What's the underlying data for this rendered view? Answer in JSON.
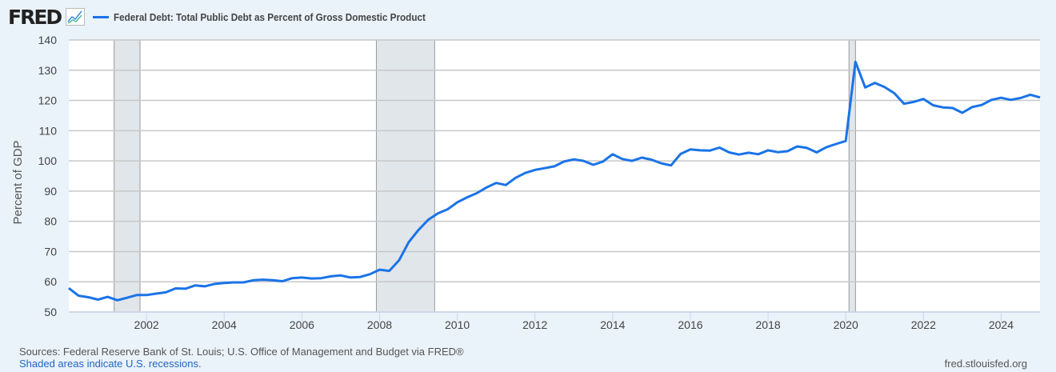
{
  "header": {
    "logo": "FRED",
    "legend_label": "Federal Debt: Total Public Debt as Percent of Gross Domestic Product"
  },
  "footer": {
    "sources": "Sources: Federal Reserve Bank of St. Louis; U.S. Office of Management and Budget via FRED®",
    "recessions_note": "Shaded areas indicate U.S. recessions.",
    "site": "fred.stlouisfed.org"
  },
  "chart_data": {
    "type": "line",
    "title": "",
    "ylabel": "Percent of GDP",
    "xlabel": "",
    "ylim": [
      50,
      140
    ],
    "xlim": [
      "2000-01",
      "2025-01"
    ],
    "yticks": [
      "50",
      "60",
      "70",
      "80",
      "90",
      "100",
      "110",
      "120",
      "130",
      "140"
    ],
    "xticks": [
      "2002",
      "2004",
      "2006",
      "2008",
      "2010",
      "2012",
      "2014",
      "2016",
      "2018",
      "2020",
      "2022",
      "2024"
    ],
    "grid": true,
    "colors": {
      "line": "#1a73e8",
      "recession": "#e1e6ea"
    },
    "recessions": [
      [
        "2001-03",
        "2001-11"
      ],
      [
        "2007-12",
        "2009-06"
      ],
      [
        "2020-02",
        "2020-04"
      ]
    ],
    "frequency": "quarterly",
    "start": "2000-01",
    "series": [
      {
        "name": "Federal Debt: Total Public Debt as Percent of Gross Domestic Product",
        "values": [
          57.9,
          55.4,
          54.9,
          54.1,
          55.0,
          53.9,
          54.7,
          55.6,
          55.6,
          56.1,
          56.5,
          57.8,
          57.7,
          58.8,
          58.5,
          59.3,
          59.6,
          59.8,
          59.8,
          60.5,
          60.7,
          60.5,
          60.2,
          61.2,
          61.4,
          61.1,
          61.2,
          61.8,
          62.1,
          61.4,
          61.6,
          62.5,
          64.0,
          63.6,
          67.1,
          73.1,
          77.1,
          80.5,
          82.6,
          84.0,
          86.3,
          87.9,
          89.3,
          91.2,
          92.7,
          92.0,
          94.4,
          96.0,
          97.0,
          97.6,
          98.2,
          99.8,
          100.5,
          100.0,
          98.7,
          99.8,
          102.2,
          100.6,
          100.0,
          101.1,
          100.4,
          99.2,
          98.5,
          102.3,
          103.8,
          103.5,
          103.4,
          104.4,
          102.8,
          102.1,
          102.7,
          102.2,
          103.5,
          102.9,
          103.2,
          104.8,
          104.3,
          102.8,
          104.5,
          105.6,
          106.6,
          132.8,
          124.3,
          125.8,
          124.4,
          122.4,
          118.9,
          119.5,
          120.5,
          118.4,
          117.7,
          117.5,
          115.9,
          117.8,
          118.5,
          120.2,
          120.9,
          120.2,
          120.8,
          121.9,
          121.0
        ]
      }
    ]
  }
}
